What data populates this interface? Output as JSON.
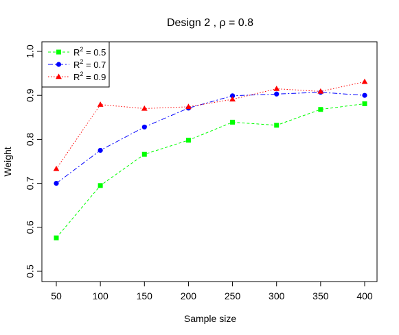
{
  "chart_data": {
    "type": "line",
    "title": "Design 2 ,  ρ = 0.8",
    "xlabel": "Sample size",
    "ylabel": "Weight",
    "x": [
      50,
      100,
      150,
      200,
      250,
      300,
      350,
      400
    ],
    "xlim": [
      50,
      400
    ],
    "ylim": [
      0.5,
      1.0
    ],
    "xticks": [
      50,
      100,
      150,
      200,
      250,
      300,
      350,
      400
    ],
    "yticks": [
      0.5,
      0.6,
      0.7,
      0.8,
      0.9,
      1.0
    ],
    "xtick_labels": [
      "50",
      "100",
      "150",
      "200",
      "250",
      "300",
      "350",
      "400"
    ],
    "ytick_labels": [
      "0.5",
      "0.6",
      "0.7",
      "0.8",
      "0.9",
      "1.0"
    ],
    "grid": false,
    "legend_position": "top-left",
    "series": [
      {
        "name": "R² = 0.5",
        "label_base": "R",
        "label_sup": "2",
        "label_rest": " = 0.5",
        "color": "#00ff00",
        "marker": "square",
        "dash": "4,3",
        "values": [
          0.576,
          0.695,
          0.766,
          0.798,
          0.839,
          0.832,
          0.868,
          0.881
        ]
      },
      {
        "name": "R² = 0.7",
        "label_base": "R",
        "label_sup": "2",
        "label_rest": " = 0.7",
        "color": "#0000ff",
        "marker": "circle",
        "dash": "7,3,2,3",
        "values": [
          0.7,
          0.775,
          0.828,
          0.871,
          0.899,
          0.903,
          0.907,
          0.9
        ]
      },
      {
        "name": "R² = 0.9",
        "label_base": "R",
        "label_sup": "2",
        "label_rest": " = 0.9",
        "color": "#ff0000",
        "marker": "triangle",
        "dash": "1.5,2.5",
        "values": [
          0.733,
          0.879,
          0.87,
          0.874,
          0.891,
          0.915,
          0.909,
          0.931
        ]
      }
    ]
  }
}
